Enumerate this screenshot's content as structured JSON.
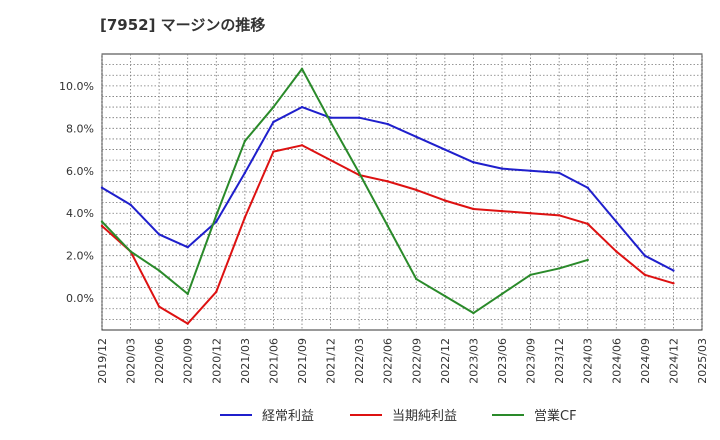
{
  "chart_data": {
    "type": "line",
    "title": "[7952]  マージンの推移",
    "categories": [
      "2019/12",
      "2020/03",
      "2020/06",
      "2020/09",
      "2020/12",
      "2021/03",
      "2021/06",
      "2021/09",
      "2021/12",
      "2022/03",
      "2022/06",
      "2022/09",
      "2022/12",
      "2023/03",
      "2023/06",
      "2023/09",
      "2023/12",
      "2024/03",
      "2024/06",
      "2024/09",
      "2024/12",
      "2025/03"
    ],
    "yticks": [
      "0.0%",
      "2.0%",
      "4.0%",
      "6.0%",
      "8.0%",
      "10.0%"
    ],
    "ylim": [
      -1.5,
      11.5
    ],
    "grid": true,
    "legend_position": "bottom",
    "series": [
      {
        "name": "経常利益",
        "color": "#1f1fcc",
        "values": [
          5.2,
          4.4,
          3.0,
          2.4,
          3.6,
          5.9,
          8.3,
          9.0,
          8.5,
          8.5,
          8.2,
          7.6,
          7.0,
          6.4,
          6.1,
          6.0,
          5.9,
          5.2,
          3.6,
          2.0,
          1.3,
          null
        ]
      },
      {
        "name": "当期純利益",
        "color": "#dd1111",
        "values": [
          3.4,
          2.2,
          -0.4,
          -1.2,
          0.3,
          3.8,
          6.9,
          7.2,
          6.5,
          5.8,
          5.5,
          5.1,
          4.6,
          4.2,
          4.1,
          4.0,
          3.9,
          3.5,
          2.2,
          1.1,
          0.7,
          null
        ]
      },
      {
        "name": "営業CF",
        "color": "#2a8a2a",
        "values": [
          3.6,
          2.2,
          1.3,
          0.2,
          3.9,
          7.4,
          9.0,
          10.8,
          8.3,
          5.9,
          3.4,
          0.9,
          0.1,
          -0.7,
          0.2,
          1.1,
          1.4,
          1.8,
          null,
          null,
          null,
          null
        ]
      }
    ]
  }
}
